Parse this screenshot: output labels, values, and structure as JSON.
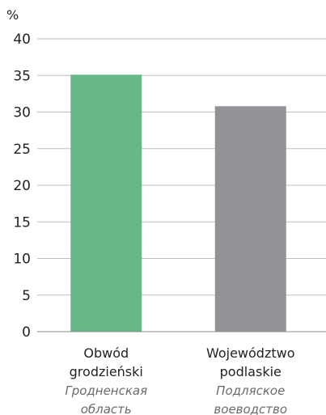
{
  "chart_data": {
    "type": "bar",
    "unit_label": "%",
    "ylim": [
      0,
      40
    ],
    "y_ticks": [
      0,
      5,
      10,
      15,
      20,
      25,
      30,
      35,
      40
    ],
    "grid": true,
    "categories": [
      {
        "label_lines": [
          "Obwód",
          "grodzieński"
        ],
        "alt_label_lines": [
          "Гродненская",
          "область"
        ],
        "value": 35.1,
        "color": "#66b886"
      },
      {
        "label_lines": [
          "Województwo",
          "podlaskie"
        ],
        "alt_label_lines": [
          "Подляское",
          "воеводство"
        ],
        "value": 30.8,
        "color": "#929396"
      }
    ]
  }
}
